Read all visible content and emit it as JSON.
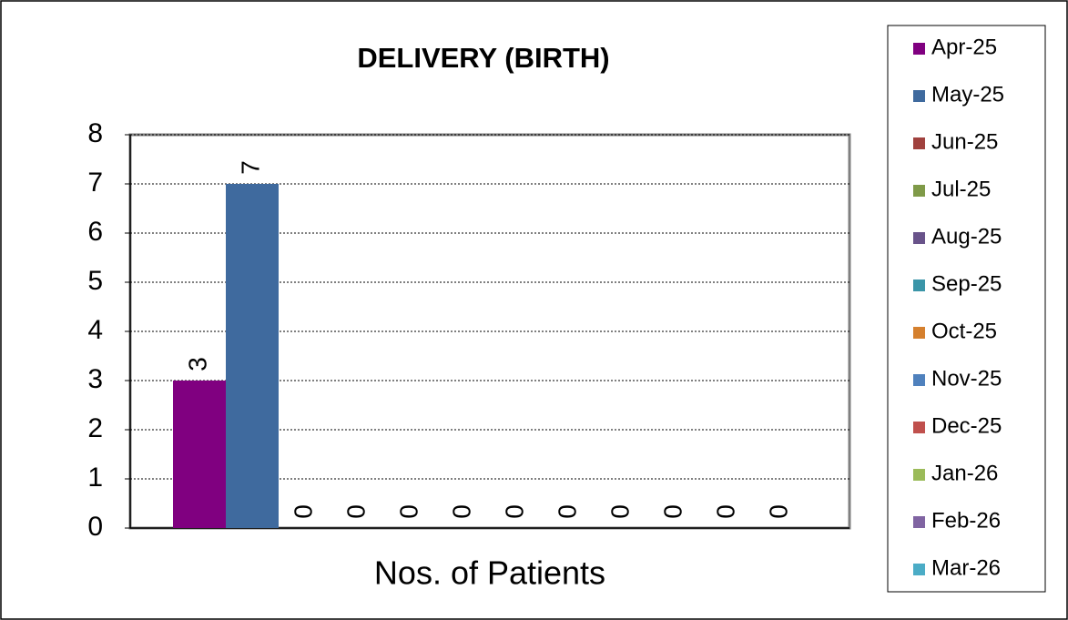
{
  "chart_data": {
    "type": "bar",
    "title": "DELIVERY (BIRTH)",
    "categories": [
      "Nos. of Patients"
    ],
    "series": [
      {
        "name": "Apr-25",
        "color": "#800080",
        "values": [
          3
        ]
      },
      {
        "name": "May-25",
        "color": "#3f6a9e",
        "values": [
          7
        ]
      },
      {
        "name": "Jun-25",
        "color": "#a0413e",
        "values": [
          0
        ]
      },
      {
        "name": "Jul-25",
        "color": "#7f9a48",
        "values": [
          0
        ]
      },
      {
        "name": "Aug-25",
        "color": "#69538a",
        "values": [
          0
        ]
      },
      {
        "name": "Sep-25",
        "color": "#3a95a8",
        "values": [
          0
        ]
      },
      {
        "name": "Oct-25",
        "color": "#d5802e",
        "values": [
          0
        ]
      },
      {
        "name": "Nov-25",
        "color": "#4f81bd",
        "values": [
          0
        ]
      },
      {
        "name": "Dec-25",
        "color": "#c0504d",
        "values": [
          0
        ]
      },
      {
        "name": "Jan-26",
        "color": "#9bbb59",
        "values": [
          0
        ]
      },
      {
        "name": "Feb-26",
        "color": "#8064a2",
        "values": [
          0
        ]
      },
      {
        "name": "Mar-26",
        "color": "#4bacc6",
        "values": [
          0
        ]
      }
    ],
    "ylim": [
      0,
      8
    ],
    "yticks": [
      0,
      1,
      2,
      3,
      4,
      5,
      6,
      7,
      8
    ],
    "grid": true,
    "legend": "right"
  }
}
